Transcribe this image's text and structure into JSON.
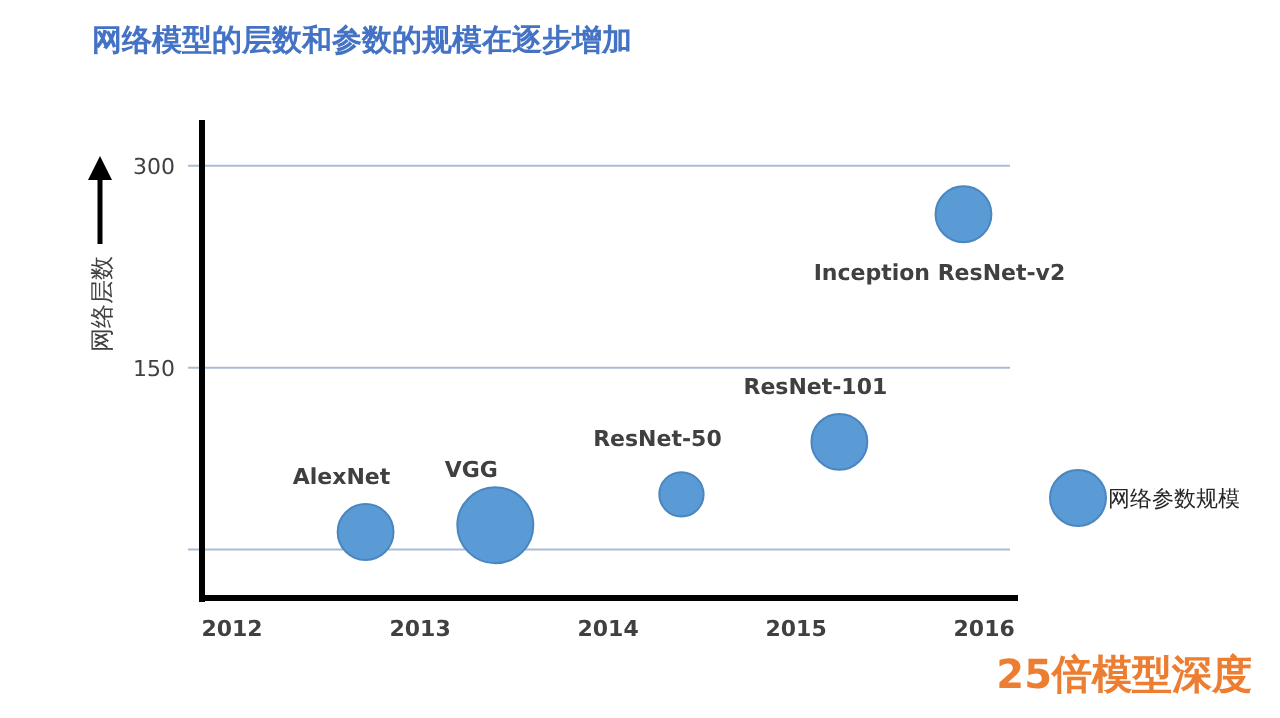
{
  "chart_data": {
    "type": "bubble",
    "title": "网络模型的层数和参数的规模在逐步增加",
    "ylabel": "网络层数",
    "series": [
      {
        "name": "网络参数规模",
        "color": "#5b9bd5",
        "x": [
          2012.71,
          2013.4,
          2014.39,
          2015.23,
          2015.89
        ],
        "values": [
          28,
          33,
          56,
          95,
          264
        ],
        "sizes": [
          0.54,
          1,
          0.34,
          0.54,
          0.54
        ]
      }
    ],
    "annotations": [
      {
        "text": "AlexNet",
        "x": 2012.71,
        "y": 28
      },
      {
        "text": "VGG",
        "x": 2013.4,
        "y": 33
      },
      {
        "text": "ResNet-50",
        "x": 2014.39,
        "y": 56
      },
      {
        "text": "ResNet-101",
        "x": 2015.23,
        "y": 95
      },
      {
        "text": "Inception ResNet-v2",
        "x": 2015.89,
        "y": 264
      },
      "25倍模型深度"
    ],
    "xlim": [
      2011.84,
      2016.18
    ],
    "ylim": [
      -21,
      334
    ],
    "xticks": [
      2012,
      2013,
      2014,
      2015,
      2016
    ],
    "yticks": [
      {
        "value": 15,
        "label": null
      },
      150,
      300
    ],
    "grid": "y",
    "legend": "right",
    "marker": "circle"
  }
}
